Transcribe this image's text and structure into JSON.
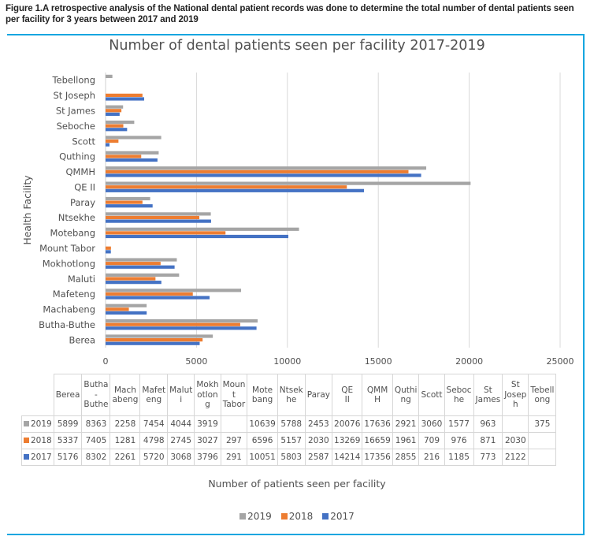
{
  "caption": "Figure 1.A retrospective analysis of the National dental patient records was done to determine the total number of dental patients seen per facility for 3 years between 2017 and 2019",
  "chart_data": {
    "type": "bar",
    "orientation": "horizontal",
    "title": "Number of dental patients seen per facility 2017-2019",
    "xlabel": "Number of patients seen per facility",
    "ylabel": "Health Facility",
    "xlim": [
      0,
      25000
    ],
    "xticks": [
      "0",
      "5000",
      "10000",
      "15000",
      "20000",
      "25000"
    ],
    "grid": "vertical",
    "legend_position": "bottom",
    "categories": [
      "Berea",
      "Butha-Buthe",
      "Machabeng",
      "Mafeteng",
      "Maluti",
      "Mokhotlong",
      "Mount Tabor",
      "Motebang",
      "Ntsekhe",
      "Paray",
      "QE II",
      "QMMH",
      "Quthing",
      "Scott",
      "Seboche",
      "St James",
      "St Joseph",
      "Tebellong"
    ],
    "table_headers": [
      "Berea",
      "Butha - Buthe",
      "Mach abeng",
      "Mafet eng",
      "Malut i",
      "Mokh otlon g",
      "Moun t Tabor",
      "Mote bang",
      "Ntsek he",
      "Paray",
      "QE II",
      "QMM H",
      "Quthi ng",
      "Scott",
      "Seboc he",
      "St James",
      "St Josep h",
      "Tebell ong"
    ],
    "series": [
      {
        "name": "2019",
        "color": "#a5a5a5",
        "values": [
          5899,
          8363,
          2258,
          7454,
          4044,
          3919,
          null,
          10639,
          5788,
          2453,
          20076,
          17636,
          2921,
          3060,
          1577,
          963,
          null,
          375
        ]
      },
      {
        "name": "2018",
        "color": "#ed7d31",
        "values": [
          5337,
          7405,
          1281,
          4798,
          2745,
          3027,
          297,
          6596,
          5157,
          2030,
          13269,
          16659,
          1961,
          709,
          976,
          871,
          2030,
          null
        ]
      },
      {
        "name": "2017",
        "color": "#4472c4",
        "values": [
          5176,
          8302,
          2261,
          5720,
          3068,
          3796,
          291,
          10051,
          5803,
          2587,
          14214,
          17356,
          2855,
          216,
          1185,
          773,
          2122,
          null
        ]
      }
    ]
  },
  "frame_color": "#16a6e0"
}
